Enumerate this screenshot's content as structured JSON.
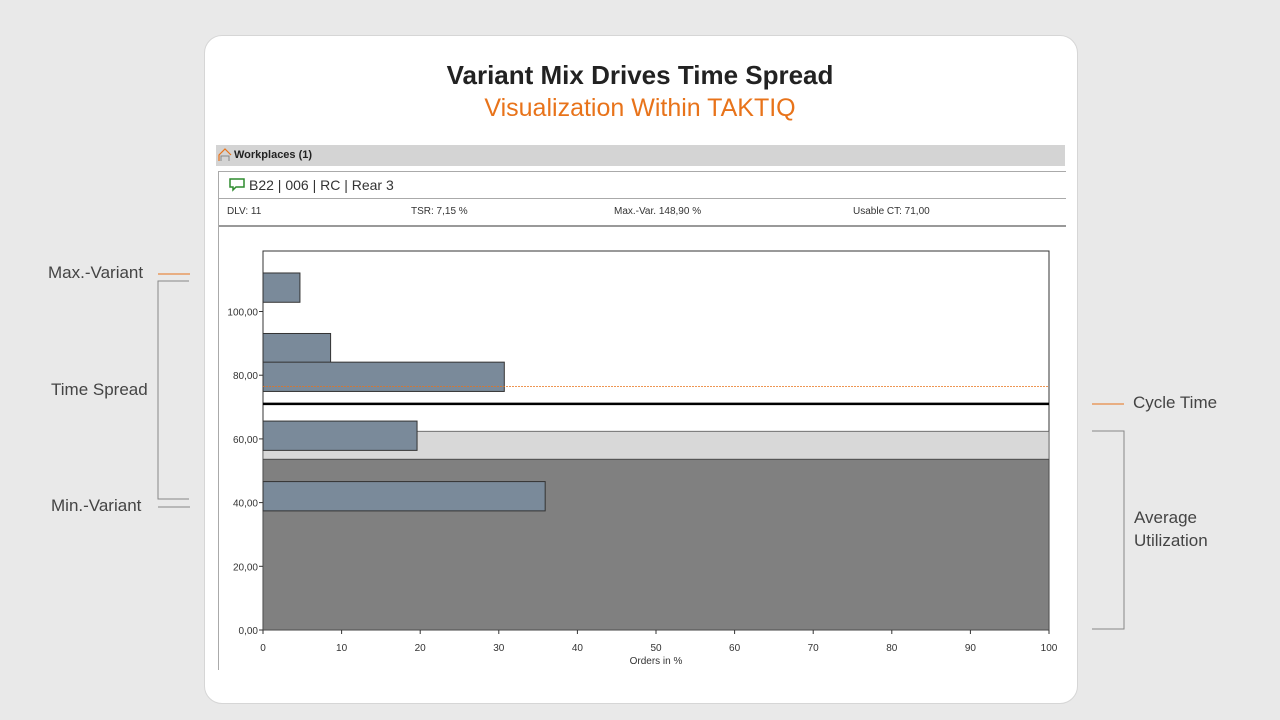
{
  "title": "Variant Mix Drives Time Spread",
  "subtitle": "Visualization Within TAKTIQ",
  "workplaces_label": "Workplaces (1)",
  "workplace_name": "B22 | 006 | RC | Rear 3",
  "stats": {
    "dlv": "DLV: 11",
    "tsr": "TSR: 7,15 %",
    "maxvar": "Max.-Var. 148,90 %",
    "usable_ct": "Usable CT: 71,00"
  },
  "annotations": {
    "max_variant": "Max.-Variant",
    "time_spread": "Time Spread",
    "min_variant": "Min.-Variant",
    "cycle_time": "Cycle Time",
    "avg_util_1": "Average",
    "avg_util_2": "Utilization"
  },
  "colors": {
    "accent": "#e8731a",
    "bar": "#7a8a9a",
    "utilization": "#808080",
    "band": "#d8d8d8",
    "icon_green": "#2e8b2e"
  },
  "chart_data": {
    "type": "bar",
    "orientation": "horizontal",
    "xlabel": "Orders in %",
    "ylabel": "",
    "xlim": [
      0,
      100
    ],
    "ylim": [
      0,
      119
    ],
    "x_ticks": [
      "0",
      "10",
      "20",
      "30",
      "40",
      "50",
      "60",
      "70",
      "80",
      "90",
      "100"
    ],
    "y_ticks": [
      "0,00",
      "20,00",
      "40,00",
      "60,00",
      "80,00",
      "100,00"
    ],
    "bar_height": 9.2,
    "bars": [
      {
        "y": 107.5,
        "x": 4.7
      },
      {
        "y": 88.5,
        "x": 8.6
      },
      {
        "y": 79.5,
        "x": 30.7
      },
      {
        "y": 61,
        "x": 19.6
      },
      {
        "y": 42,
        "x": 35.9
      }
    ],
    "cycle_time": 71,
    "dashed_line": 76.5,
    "average_utilization": 53.6,
    "band_top": 62.4,
    "grid": false
  }
}
